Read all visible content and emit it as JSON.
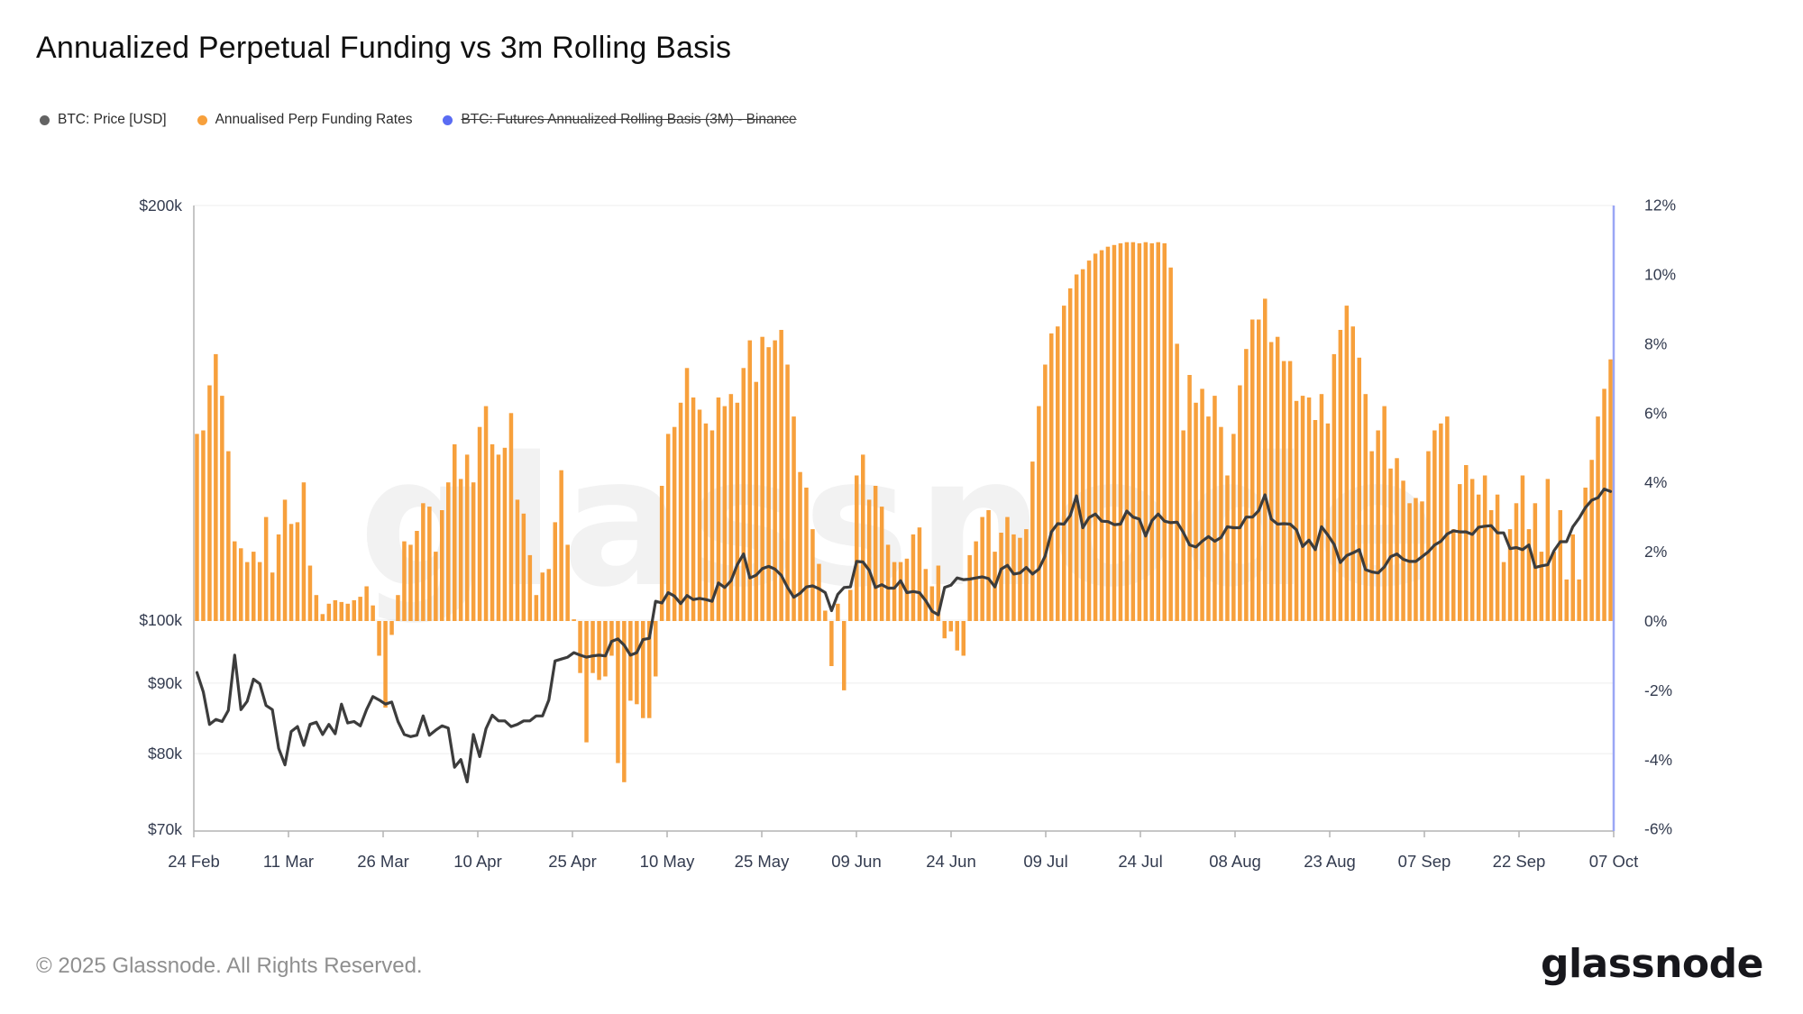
{
  "title": "Annualized Perpetual Funding vs 3m Rolling Basis",
  "watermark": "glassnode",
  "legend": [
    {
      "label": "BTC: Price [USD]",
      "color": "#636363",
      "disabled": false
    },
    {
      "label": "Annualised Perp Funding Rates",
      "color": "#F7A03C",
      "disabled": false
    },
    {
      "label": "BTC: Futures Annualized Rolling Basis (3M) - Binance",
      "color": "#5A6CF3",
      "disabled": true
    }
  ],
  "footer": {
    "copyright": "© 2025 Glassnode. All Rights Reserved.",
    "brand": "glassnode"
  },
  "chart_data": {
    "type": "bar+line combo, dual axis",
    "x_tick_labels": [
      "24 Feb",
      "11 Mar",
      "26 Mar",
      "10 Apr",
      "25 Apr",
      "10 May",
      "25 May",
      "09 Jun",
      "24 Jun",
      "09 Jul",
      "24 Jul",
      "08 Aug",
      "23 Aug",
      "07 Sep",
      "22 Sep",
      "07 Oct"
    ],
    "x_range": "24 Feb 2025 to 07 Oct 2025, daily",
    "left_axis": {
      "title": "BTC price, USD, log scale",
      "ticks": [
        {
          "label": "$200k",
          "value": 200
        },
        {
          "label": "$100k",
          "value": 100
        },
        {
          "label": "$90k",
          "value": 90
        },
        {
          "label": "$80k",
          "value": 80
        },
        {
          "label": "$70k",
          "value": 70
        }
      ],
      "scale": "log",
      "grid": true
    },
    "right_axis": {
      "title": "annualized funding rate, %",
      "ticks": [
        {
          "label": "12%",
          "value": 12
        },
        {
          "label": "10%",
          "value": 10
        },
        {
          "label": "8%",
          "value": 8
        },
        {
          "label": "6%",
          "value": 6
        },
        {
          "label": "4%",
          "value": 4
        },
        {
          "label": "2%",
          "value": 2
        },
        {
          "label": "0%",
          "value": 0
        },
        {
          "label": "-2%",
          "value": -2
        },
        {
          "label": "-4%",
          "value": -4
        },
        {
          "label": "-6%",
          "value": -6
        }
      ],
      "range": [
        -6,
        12
      ],
      "line_color": "#9AA6F5"
    },
    "series": [
      {
        "name": "BTC: Price [USD]",
        "type": "line",
        "axis": "left",
        "color": "#3C3C3C",
        "units": "thousand USD",
        "values": [
          91.6,
          88.7,
          84.0,
          84.7,
          84.4,
          86.0,
          94.3,
          86.1,
          87.3,
          90.6,
          89.9,
          86.7,
          86.1,
          80.7,
          78.5,
          83.0,
          83.7,
          81.1,
          84.0,
          84.3,
          82.6,
          84.0,
          82.7,
          86.9,
          84.2,
          84.4,
          83.8,
          86.1,
          88.0,
          87.5,
          86.9,
          87.2,
          84.4,
          82.6,
          82.3,
          82.5,
          85.2,
          82.5,
          83.2,
          83.8,
          83.5,
          78.2,
          79.2,
          76.3,
          82.6,
          79.6,
          83.4,
          85.3,
          84.5,
          84.5,
          83.7,
          84.0,
          84.5,
          84.5,
          85.2,
          85.2,
          87.5,
          93.4,
          93.7,
          94.0,
          94.7,
          94.3,
          94.0,
          94.2,
          94.3,
          94.2,
          96.5,
          96.9,
          95.9,
          94.3,
          94.7,
          96.8,
          97.0,
          103.2,
          102.9,
          104.7,
          104.1,
          102.8,
          104.2,
          103.5,
          103.7,
          103.5,
          103.2,
          106.4,
          105.6,
          106.8,
          109.7,
          111.7,
          107.3,
          107.8,
          109.0,
          109.4,
          108.9,
          107.8,
          105.6,
          103.9,
          104.6,
          105.7,
          105.9,
          105.4,
          104.7,
          101.6,
          104.4,
          105.6,
          105.7,
          110.3,
          110.2,
          108.7,
          105.6,
          106.1,
          105.5,
          105.5,
          106.8,
          104.7,
          104.9,
          104.7,
          103.3,
          101.5,
          100.9,
          105.6,
          106.0,
          107.3,
          107.0,
          107.1,
          107.3,
          107.5,
          107.2,
          105.7,
          108.9,
          109.6,
          108.0,
          108.2,
          109.2,
          108.0,
          108.9,
          111.3,
          115.9,
          117.5,
          117.4,
          119.1,
          123.1,
          116.7,
          118.7,
          119.4,
          118.0,
          117.9,
          117.3,
          117.4,
          120.0,
          118.8,
          118.4,
          115.1,
          118.1,
          119.4,
          118.0,
          117.7,
          117.8,
          115.8,
          113.4,
          113.0,
          114.1,
          115.0,
          114.1,
          114.8,
          116.9,
          116.7,
          116.7,
          118.8,
          118.8,
          120.1,
          123.3,
          118.4,
          117.4,
          117.5,
          117.4,
          116.3,
          113.1,
          114.3,
          112.5,
          116.9,
          115.3,
          113.5,
          110.1,
          111.4,
          111.9,
          112.5,
          108.8,
          108.4,
          108.2,
          109.3,
          111.2,
          111.7,
          110.7,
          110.3,
          110.3,
          111.2,
          112.1,
          113.4,
          114.1,
          115.5,
          116.1,
          115.9,
          115.9,
          115.4,
          116.8,
          117.0,
          117.1,
          115.7,
          115.7,
          112.7,
          112.9,
          112.5,
          113.4,
          109.2,
          109.5,
          109.7,
          112.3,
          114.0,
          114.0,
          116.9,
          118.6,
          120.7,
          122.2,
          122.7,
          124.5,
          124.0
        ]
      },
      {
        "name": "Annualised Perp Funding Rates",
        "type": "bar",
        "axis": "right",
        "color": "#F7A03C",
        "units": "percent annualized",
        "values": [
          5.4,
          5.5,
          6.8,
          7.7,
          6.5,
          4.9,
          2.3,
          2.1,
          1.7,
          2.0,
          1.7,
          3.0,
          1.4,
          2.5,
          3.5,
          2.8,
          2.85,
          4.0,
          1.6,
          0.75,
          0.2,
          0.5,
          0.6,
          0.55,
          0.5,
          0.6,
          0.7,
          1.0,
          0.45,
          -1.0,
          -2.5,
          -0.4,
          0.75,
          2.3,
          2.2,
          2.6,
          3.4,
          3.3,
          2.0,
          3.2,
          4.0,
          5.1,
          4.1,
          4.8,
          4.0,
          5.6,
          6.2,
          5.1,
          4.8,
          5.0,
          6.0,
          3.5,
          3.1,
          1.9,
          0.75,
          1.4,
          1.5,
          2.85,
          4.35,
          2.2,
          0.05,
          -1.5,
          -3.5,
          -1.5,
          -1.7,
          -1.6,
          -1.0,
          -4.1,
          -4.65,
          -2.3,
          -2.4,
          -2.8,
          -2.8,
          -1.6,
          3.9,
          5.4,
          5.6,
          6.3,
          7.3,
          6.45,
          6.1,
          5.7,
          5.5,
          6.45,
          6.2,
          6.55,
          6.3,
          7.3,
          8.1,
          6.9,
          8.2,
          7.9,
          8.1,
          8.4,
          7.4,
          5.9,
          4.3,
          3.85,
          2.65,
          1.65,
          0.3,
          -1.3,
          0.5,
          -2.0,
          0.9,
          4.2,
          4.8,
          3.5,
          3.9,
          3.3,
          2.2,
          1.7,
          1.7,
          1.8,
          2.5,
          2.7,
          1.5,
          1.0,
          1.6,
          -0.5,
          -0.3,
          -0.85,
          -1.0,
          1.9,
          2.3,
          3.0,
          3.2,
          2.0,
          2.55,
          3.0,
          2.5,
          2.4,
          2.65,
          4.6,
          6.2,
          7.4,
          8.3,
          8.5,
          9.1,
          9.6,
          10.0,
          10.15,
          10.4,
          10.6,
          10.7,
          10.8,
          10.85,
          10.9,
          10.93,
          10.93,
          10.9,
          10.93,
          10.9,
          10.93,
          10.9,
          10.2,
          8.0,
          5.5,
          7.1,
          6.3,
          6.7,
          5.9,
          6.5,
          5.6,
          4.2,
          5.4,
          6.8,
          7.85,
          8.7,
          8.7,
          9.3,
          8.05,
          8.2,
          7.5,
          7.5,
          6.35,
          6.5,
          6.45,
          5.8,
          6.55,
          5.7,
          7.7,
          8.4,
          9.1,
          8.5,
          7.6,
          6.55,
          4.9,
          5.5,
          6.2,
          4.4,
          4.7,
          4.05,
          3.4,
          3.55,
          3.45,
          4.9,
          5.5,
          5.7,
          5.9,
          2.65,
          3.95,
          4.5,
          4.1,
          3.65,
          4.2,
          3.2,
          3.65,
          1.7,
          2.65,
          3.4,
          4.2,
          2.65,
          3.4,
          2.0,
          4.1,
          2.0,
          3.2,
          1.2,
          2.5,
          1.2,
          3.85,
          4.65,
          5.9,
          6.7,
          7.55
        ]
      },
      {
        "name": "BTC: Futures Annualized Rolling Basis (3M) - Binance",
        "type": "line",
        "axis": "right",
        "color": "#5A6CF3",
        "disabled": true,
        "values": []
      }
    ]
  }
}
